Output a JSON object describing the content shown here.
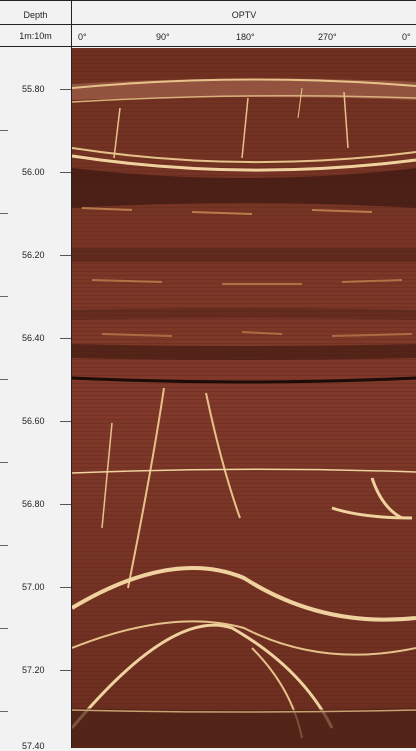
{
  "header": {
    "depth_title": "Depth",
    "scale": "1m:10m",
    "track_title": "OPTV",
    "azimuths": [
      "0°",
      "90°",
      "180°",
      "270°",
      "0°"
    ]
  },
  "depth_axis": {
    "labels": [
      "55.80",
      "56.00",
      "56.20",
      "56.40",
      "56.60",
      "56.80",
      "57.00",
      "57.20",
      "57.40"
    ]
  },
  "colors": {
    "background": "#f2f2f2",
    "rock_base": "#7a3424",
    "rock_dark": "#3e1a12",
    "vein": "#e8c48a"
  }
}
